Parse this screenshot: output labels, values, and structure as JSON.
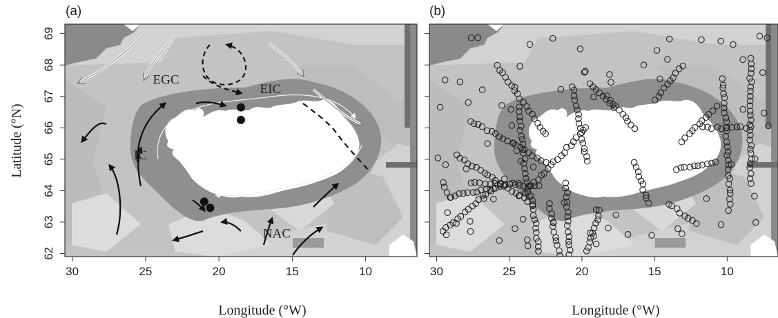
{
  "panels": [
    {
      "label": "(a)",
      "currents": [
        {
          "name": "EGC",
          "lon": 24.5,
          "lat": 67.4
        },
        {
          "name": "EIC",
          "lon": 17.2,
          "lat": 67.1
        },
        {
          "name": "IC",
          "lon": 25.8,
          "lat": 65.0
        },
        {
          "name": "NAC",
          "lon": 17.0,
          "lat": 62.5
        }
      ],
      "stations": [
        {
          "lon": 18.5,
          "lat": 66.65
        },
        {
          "lon": 18.5,
          "lat": 66.25
        },
        {
          "lon": 21.0,
          "lat": 63.65
        },
        {
          "lon": 20.6,
          "lat": 63.45
        }
      ]
    },
    {
      "label": "(b)"
    }
  ],
  "axes": {
    "x_title": "Longitude (°W)",
    "y_title": "Latitude (°N)",
    "x_ticks": [
      "30",
      "25",
      "20",
      "15",
      "10"
    ],
    "y_ticks": [
      "62",
      "63",
      "64",
      "65",
      "66",
      "67",
      "68",
      "69"
    ]
  },
  "colors": {
    "light_shelf": "#d4d4d4",
    "mid_depth": "#c0c0c0",
    "dark_shelf": "#8e8e8e",
    "land": "#ffffff",
    "arrow": "#111111"
  }
}
